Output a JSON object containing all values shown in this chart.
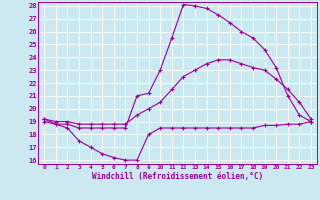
{
  "xlabel": "Windchill (Refroidissement éolien,°C)",
  "bg_color": "#cce8f0",
  "line_color": "#990099",
  "grid_color": "#ffffff",
  "xlim": [
    -0.5,
    23.5
  ],
  "ylim": [
    15.7,
    28.3
  ],
  "xticks": [
    0,
    1,
    2,
    3,
    4,
    5,
    6,
    7,
    8,
    9,
    10,
    11,
    12,
    13,
    14,
    15,
    16,
    17,
    18,
    19,
    20,
    21,
    22,
    23
  ],
  "yticks": [
    16,
    17,
    18,
    19,
    20,
    21,
    22,
    23,
    24,
    25,
    26,
    27,
    28
  ],
  "curve1_x": [
    0,
    1,
    2,
    3,
    4,
    5,
    6,
    7,
    8,
    9,
    10,
    11,
    12,
    13,
    14,
    15,
    16,
    17,
    18,
    19,
    20,
    21,
    22,
    23
  ],
  "curve1_y": [
    19.0,
    18.8,
    18.5,
    17.5,
    17.0,
    16.5,
    16.2,
    16.0,
    16.0,
    18.0,
    18.5,
    18.5,
    18.5,
    18.5,
    18.5,
    18.5,
    18.5,
    18.5,
    18.5,
    18.7,
    18.7,
    18.8,
    18.8,
    19.0
  ],
  "curve2_x": [
    0,
    1,
    2,
    3,
    4,
    5,
    6,
    7,
    8,
    9,
    10,
    11,
    12,
    13,
    14,
    15,
    16,
    17,
    18,
    19,
    20,
    21,
    22,
    23
  ],
  "curve2_y": [
    19.2,
    18.8,
    18.8,
    18.5,
    18.5,
    18.5,
    18.5,
    18.5,
    21.0,
    21.2,
    23.0,
    25.5,
    28.1,
    28.0,
    27.8,
    27.3,
    26.7,
    26.0,
    25.5,
    24.6,
    23.2,
    21.0,
    19.5,
    19.0
  ],
  "curve3_x": [
    0,
    1,
    2,
    3,
    4,
    5,
    6,
    7,
    8,
    9,
    10,
    11,
    12,
    13,
    14,
    15,
    16,
    17,
    18,
    19,
    20,
    21,
    22,
    23
  ],
  "curve3_y": [
    19.2,
    19.0,
    19.0,
    18.8,
    18.8,
    18.8,
    18.8,
    18.8,
    19.5,
    20.0,
    20.5,
    21.5,
    22.5,
    23.0,
    23.5,
    23.8,
    23.8,
    23.5,
    23.2,
    23.0,
    22.3,
    21.5,
    20.5,
    19.2
  ]
}
